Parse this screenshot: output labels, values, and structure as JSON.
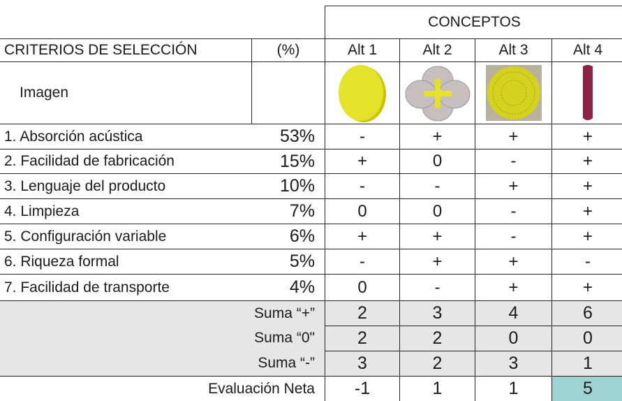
{
  "header": {
    "group": "CONCEPTOS",
    "criteria": "CRITERIOS DE SELECCIÓN",
    "percent": "(%)",
    "alternatives": [
      "Alt 1",
      "Alt 2",
      "Alt 3",
      "Alt 4"
    ]
  },
  "image_row_label": "Imagen",
  "criteria": [
    {
      "name": "1. Absorción acústica",
      "weight": "53%",
      "scores": [
        "-",
        "+",
        "+",
        "+"
      ]
    },
    {
      "name": "2. Facilidad de fabricación",
      "weight": "15%",
      "scores": [
        "+",
        "0",
        "-",
        "+"
      ]
    },
    {
      "name": "3. Lenguaje del producto",
      "weight": "10%",
      "scores": [
        "-",
        "-",
        "+",
        "+"
      ]
    },
    {
      "name": "4. Limpieza",
      "weight": "7%",
      "scores": [
        "0",
        "0",
        "-",
        "+"
      ]
    },
    {
      "name": "5. Configuración variable",
      "weight": "6%",
      "scores": [
        "+",
        "+",
        "-",
        "+"
      ]
    },
    {
      "name": "6. Riqueza formal",
      "weight": "5%",
      "scores": [
        "-",
        "+",
        "+",
        "-"
      ]
    },
    {
      "name": "7. Facilidad de transporte",
      "weight": "4%",
      "scores": [
        "0",
        "-",
        "+",
        "+"
      ]
    }
  ],
  "sums": [
    {
      "label": "Suma “+”",
      "values": [
        2,
        3,
        4,
        6
      ]
    },
    {
      "label": "Suma “0\"",
      "values": [
        2,
        2,
        0,
        0
      ]
    },
    {
      "label": "Suma “-”",
      "values": [
        3,
        2,
        3,
        1
      ]
    }
  ],
  "net": {
    "label": "Evaluación Neta",
    "values": [
      -1,
      1,
      1,
      5
    ]
  }
}
